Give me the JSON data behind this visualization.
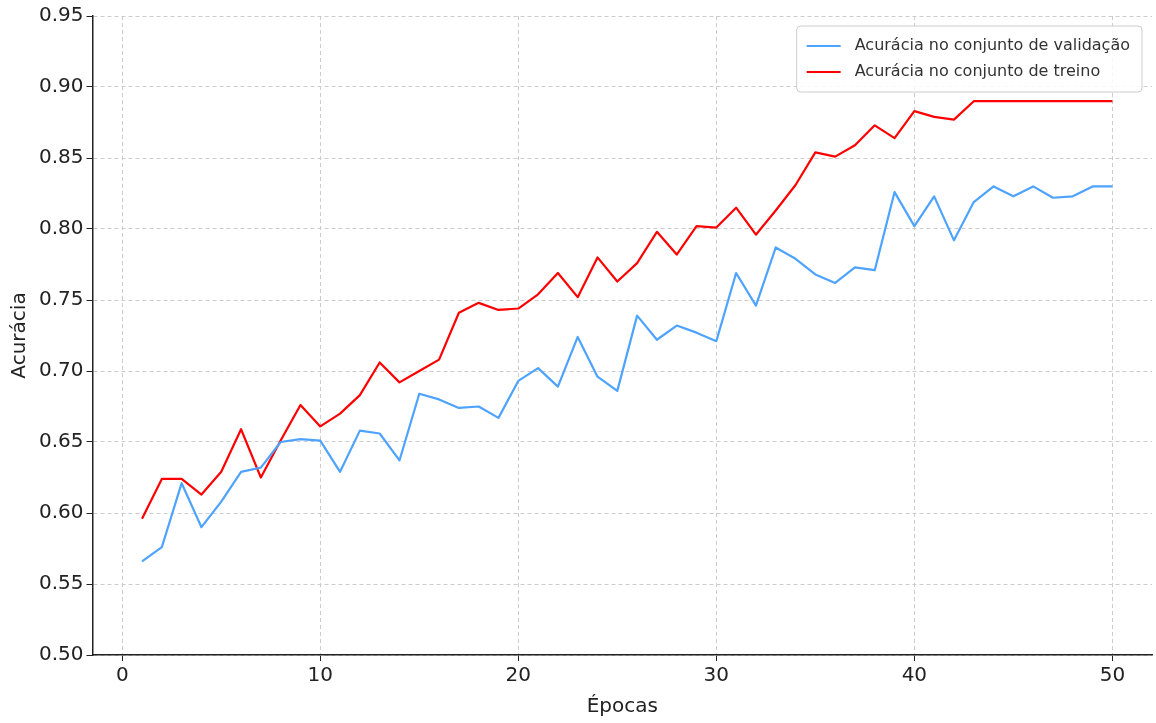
{
  "chart_data": {
    "type": "line",
    "xlabel": "Épocas",
    "ylabel": "Acurácia",
    "x": [
      1,
      2,
      3,
      4,
      5,
      6,
      7,
      8,
      9,
      10,
      11,
      12,
      13,
      14,
      15,
      16,
      17,
      18,
      19,
      20,
      21,
      22,
      23,
      24,
      25,
      26,
      27,
      28,
      29,
      30,
      31,
      32,
      33,
      34,
      35,
      36,
      37,
      38,
      39,
      40,
      41,
      42,
      43,
      44,
      45,
      46,
      47,
      48,
      49,
      50
    ],
    "series": [
      {
        "name": "Acurácia no conjunto de validação",
        "color": "#4da3ff",
        "values": [
          0.566,
          0.576,
          0.621,
          0.59,
          0.608,
          0.629,
          0.632,
          0.65,
          0.652,
          0.651,
          0.629,
          0.658,
          0.656,
          0.637,
          0.684,
          0.68,
          0.674,
          0.675,
          0.667,
          0.693,
          0.702,
          0.689,
          0.724,
          0.696,
          0.686,
          0.739,
          0.722,
          0.732,
          0.727,
          0.721,
          0.769,
          0.746,
          0.787,
          0.779,
          0.768,
          0.762,
          0.773,
          0.771,
          0.826,
          0.802,
          0.823,
          0.792,
          0.819,
          0.83,
          0.823,
          0.83,
          0.822,
          0.823,
          0.83,
          0.83
        ]
      },
      {
        "name": "Acurácia no conjunto de treino",
        "color": "#ff0000",
        "values": [
          0.596,
          0.624,
          0.624,
          0.613,
          0.629,
          0.659,
          0.625,
          0.651,
          0.676,
          0.661,
          0.67,
          0.683,
          0.706,
          0.692,
          0.7,
          0.708,
          0.741,
          0.748,
          0.743,
          0.744,
          0.754,
          0.769,
          0.752,
          0.78,
          0.763,
          0.776,
          0.798,
          0.782,
          0.802,
          0.801,
          0.815,
          0.796,
          0.813,
          0.831,
          0.854,
          0.851,
          0.859,
          0.873,
          0.864,
          0.883,
          0.879,
          0.877,
          0.89,
          0.89,
          0.89,
          0.89,
          0.89,
          0.89,
          0.89,
          0.89
        ]
      }
    ],
    "xlim": [
      -1.5,
      52
    ],
    "xticks": [
      0,
      10,
      20,
      30,
      40,
      50
    ],
    "ylim": [
      0.5,
      0.95
    ],
    "yticks": [
      {
        "value": 0.5,
        "label": "0.50"
      },
      {
        "value": 0.55,
        "label": "0.55"
      },
      {
        "value": 0.6,
        "label": "0.60"
      },
      {
        "value": 0.65,
        "label": "0.65"
      },
      {
        "value": 0.7,
        "label": "0.70"
      },
      {
        "value": 0.75,
        "label": "0.75"
      },
      {
        "value": 0.8,
        "label": "0.80"
      },
      {
        "value": 0.85,
        "label": "0.85"
      },
      {
        "value": 0.9,
        "label": "0.90"
      },
      {
        "value": 0.95,
        "label": "0.95"
      }
    ],
    "grid": true,
    "legend": "top right",
    "marker": "none",
    "line_style": "solid"
  }
}
